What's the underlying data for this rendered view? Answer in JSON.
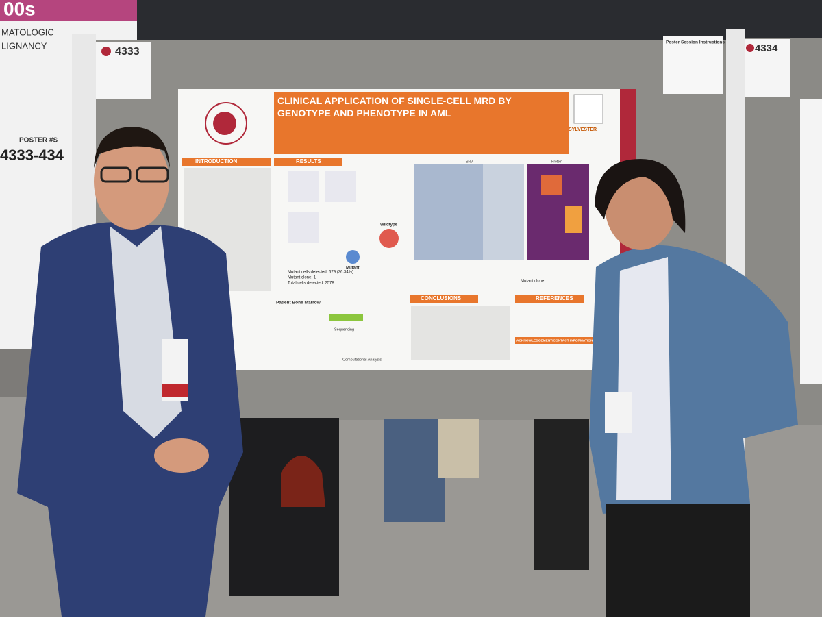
{
  "banner": {
    "top": "00s",
    "line1": "MATOLOGIC",
    "line2": "LIGNANCY",
    "poster_label": "POSTER #S",
    "poster_range": "4333-434"
  },
  "boards": {
    "left_number": "4333",
    "right_number": "4334",
    "instructions": "Poster Session Instructions"
  },
  "poster": {
    "title": "CLINICAL APPLICATION OF SINGLE-CELL MRD BY GENOTYPE AND PHENOTYPE IN AML",
    "sections": {
      "introduction": "INTRODUCTION",
      "results": "RESULTS",
      "conclusions": "CONCLUSIONS",
      "references": "REFERENCES",
      "acknowledgements": "ACKNOWLEDGEMENT/CONTACT INFORMATION"
    },
    "stats": [
      "Mutant cells detected: 679 (26.34%)",
      "Mutant clone: 1",
      "Total cells detected: 2578"
    ],
    "labels": {
      "wildtype": "Wildtype",
      "mutant": "Mutant",
      "snv": "SNV",
      "protein": "Protein",
      "bone_marrow": "Patient Bone Marrow",
      "sequencing": "Sequencing",
      "analysis": "Computational Analysis",
      "mutant_clone": "Mutant clone",
      "sylvester": "SYLVESTER"
    }
  }
}
